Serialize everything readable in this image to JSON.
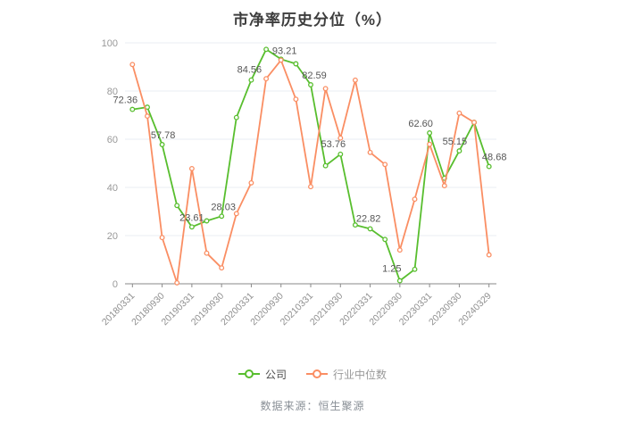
{
  "title": "市净率历史分位（%）",
  "footer": "数据来源：恒生聚源",
  "colors": {
    "company": "#58BE2E",
    "industry": "#FA8E63",
    "grid_line": "#E9EDF3",
    "axis_line": "#8A8A8A",
    "y_tick_label": "#999999",
    "x_tick_label": "#8F8F8F",
    "value_label": "#565656",
    "title_text": "#3D3D3D",
    "legend_company_text": "#4D4D4D",
    "legend_industry_text": "#999999"
  },
  "legend": {
    "items": [
      {
        "label": "公司",
        "color": "#58BE2E",
        "text_color": "#4D4D4D"
      },
      {
        "label": "行业中位数",
        "color": "#FA8E63",
        "text_color": "#999999"
      }
    ]
  },
  "chart_data": {
    "type": "line",
    "title": "市净率历史分位（%）",
    "xlabel": "",
    "ylabel": "",
    "ylim": [
      0,
      100
    ],
    "yticks": [
      0,
      20,
      40,
      60,
      80,
      100
    ],
    "grid": true,
    "legend_position": "bottom",
    "x": [
      "20180331",
      "20180630",
      "20180930",
      "20181231",
      "20190331",
      "20190630",
      "20190930",
      "20191231",
      "20200331",
      "20200630",
      "20200930",
      "20201231",
      "20210331",
      "20210630",
      "20210930",
      "20211231",
      "20220331",
      "20220630",
      "20220930",
      "20221231",
      "20230331",
      "20230630",
      "20230930",
      "20231231",
      "20240329"
    ],
    "x_shown_tick_indices": [
      0,
      2,
      4,
      6,
      8,
      10,
      12,
      14,
      16,
      18,
      20,
      22,
      24
    ],
    "x_shown_tick_labels": [
      "20180331",
      "20180930",
      "20190331",
      "20190930",
      "20200331",
      "20200930",
      "20210331",
      "20210930",
      "20220331",
      "20220930",
      "20230331",
      "20230930",
      "20240329"
    ],
    "series": [
      {
        "name": "公司",
        "color": "#58BE2E",
        "values": [
          72.36,
          73.3,
          57.78,
          32.5,
          23.61,
          26.1,
          28.03,
          69.0,
          84.56,
          97.3,
          93.21,
          91.3,
          82.59,
          49.0,
          53.76,
          24.4,
          22.82,
          18.4,
          1.25,
          6.0,
          62.6,
          43.8,
          55.15,
          67.0,
          48.68
        ],
        "point_labels": [
          {
            "i": 0,
            "t": "72.36",
            "dx": -8,
            "dy": -7
          },
          {
            "i": 2,
            "t": "57.78",
            "dx": 1,
            "dy": -7
          },
          {
            "i": 4,
            "t": "23.61",
            "dx": 0,
            "dy": -7
          },
          {
            "i": 6,
            "t": "28.03",
            "dx": 2,
            "dy": -7
          },
          {
            "i": 8,
            "t": "84.56",
            "dx": -2,
            "dy": -8
          },
          {
            "i": 10,
            "t": "93.21",
            "dx": 4,
            "dy": -6
          },
          {
            "i": 12,
            "t": "82.59",
            "dx": 4,
            "dy": -7
          },
          {
            "i": 14,
            "t": "53.76",
            "dx": -8,
            "dy": -8
          },
          {
            "i": 16,
            "t": "22.82",
            "dx": -2,
            "dy": -8
          },
          {
            "i": 18,
            "t": "1.25",
            "dx": -9,
            "dy": -10
          },
          {
            "i": 20,
            "t": "62.60",
            "dx": -10,
            "dy": -7
          },
          {
            "i": 22,
            "t": "55.15",
            "dx": -5,
            "dy": -7
          },
          {
            "i": 24,
            "t": "48.68",
            "dx": 6,
            "dy": -7
          }
        ]
      },
      {
        "name": "行业中位数",
        "color": "#FA8E63",
        "values": [
          91.0,
          69.6,
          19.2,
          0.4,
          47.8,
          12.7,
          6.6,
          29.1,
          41.9,
          85.1,
          92.8,
          76.6,
          40.3,
          81.0,
          60.5,
          84.5,
          54.5,
          49.5,
          14.0,
          35.1,
          57.9,
          40.7,
          70.8,
          67.0,
          12.0
        ],
        "point_labels": []
      }
    ]
  }
}
